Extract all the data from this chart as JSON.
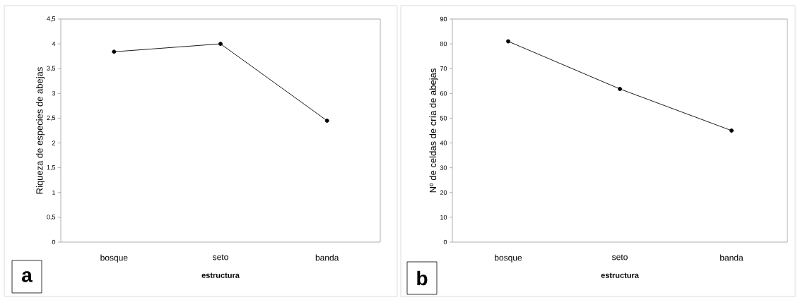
{
  "chart_data": [
    {
      "type": "line",
      "categories": [
        "bosque",
        "seto",
        "banda"
      ],
      "values": [
        3.84,
        4.0,
        2.45
      ],
      "color": "#000000",
      "marker": "circle",
      "line_style": "solid",
      "xlabel": "estructura",
      "ylabel": "Riqueza de especies de abejas",
      "ylim": [
        0,
        4.5
      ],
      "yticks": [
        0,
        {
          "value": 0.5,
          "label": "0,5"
        },
        1,
        {
          "value": 1.5,
          "label": "1,5"
        },
        2,
        {
          "value": 2.5,
          "label": "2,5"
        },
        3,
        {
          "value": 3.5,
          "label": "3,5"
        },
        4,
        {
          "value": 4.5,
          "label": "4,5"
        }
      ],
      "annotations": [
        "a"
      ]
    },
    {
      "type": "line",
      "categories": [
        "bosque",
        "seto",
        "banda"
      ],
      "values": [
        81,
        61.8,
        45
      ],
      "color": "#000000",
      "marker": "circle",
      "line_style": "solid",
      "xlabel": "estructura",
      "ylabel": "Nº de celdas de cría de abejas",
      "ylim": [
        0,
        90
      ],
      "yticks": [
        0,
        10,
        20,
        30,
        40,
        50,
        60,
        70,
        80,
        90
      ],
      "annotations": [
        "b"
      ]
    }
  ]
}
